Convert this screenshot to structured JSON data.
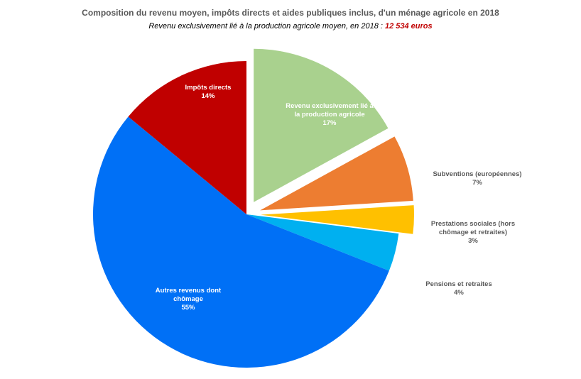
{
  "chart_data": {
    "type": "pie",
    "title": "Composition du revenu moyen, impôts directs et aides publiques inclus, d'un ménage agricole en 2018",
    "subtitle_text": "Revenu exclusivement lié à la production agricole moyen, en 2018 : ",
    "subtitle_amount": "12 534 euros",
    "start_angle_deg": 0,
    "slices": [
      {
        "label_lines": [
          "Revenu exclusivement lié à",
          "la production agricole"
        ],
        "pct_label": "17%",
        "value": 17,
        "color": "#a9d18e",
        "exploded": true,
        "label_inside": true
      },
      {
        "label_lines": [
          "Subventions (européennes)"
        ],
        "pct_label": "7%",
        "value": 7,
        "color": "#ed7d31",
        "exploded": true,
        "label_inside": false
      },
      {
        "label_lines": [
          "Prestations sociales (hors",
          "chômage et retraites)"
        ],
        "pct_label": "3%",
        "value": 3,
        "color": "#ffc000",
        "exploded": true,
        "label_inside": false
      },
      {
        "label_lines": [
          "Pensions et retraites"
        ],
        "pct_label": "4%",
        "value": 4,
        "color": "#00b0f0",
        "exploded": false,
        "label_inside": false
      },
      {
        "label_lines": [
          "Autres revenus dont",
          "chômage"
        ],
        "pct_label": "55%",
        "value": 55,
        "color": "#0070f6",
        "exploded": false,
        "label_inside": true
      },
      {
        "label_lines": [
          "Impôts directs"
        ],
        "pct_label": "14%",
        "value": 14,
        "color": "#c00000",
        "exploded": false,
        "label_inside": true
      }
    ]
  }
}
